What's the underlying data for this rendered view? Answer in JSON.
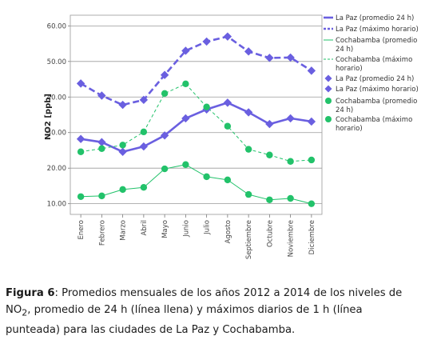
{
  "chart_data": {
    "type": "line",
    "ylabel": "NO2 [ppb]",
    "ylim": [
      7,
      63
    ],
    "yticks": [
      "10.00",
      "20.00",
      "30.00",
      "40.00",
      "50.00",
      "60.00"
    ],
    "ytick_values": [
      10,
      20,
      30,
      40,
      50,
      60
    ],
    "categories": [
      "Enero",
      "Febrero",
      "Marzo",
      "Abril",
      "Mayo",
      "Junio",
      "Julio",
      "Agosto",
      "Septiembre",
      "Octubre",
      "Noviembre",
      "Diciembre"
    ],
    "grid": "horizontal",
    "legend_position": "right",
    "series": [
      {
        "name": "La Paz (promedio 24 h)",
        "color": "#6a5fe0",
        "line": "solid",
        "width": 2.6,
        "values": [
          28.2,
          27.3,
          24.6,
          26.1,
          29.2,
          34.0,
          36.5,
          38.4,
          35.7,
          32.4,
          34.0,
          33.1
        ]
      },
      {
        "name": "La Paz (máximo horario)",
        "color": "#6a5fe0",
        "line": "dashed",
        "width": 2.6,
        "values": [
          43.8,
          40.4,
          37.8,
          39.2,
          46.2,
          53.0,
          55.6,
          57.0,
          52.8,
          51.0,
          51.1,
          47.4
        ]
      },
      {
        "name": "Cochabamba (promedio 24 h)",
        "color": "#22c26a",
        "line": "solid",
        "width": 1.0,
        "values": [
          12.0,
          12.2,
          14.0,
          14.6,
          19.8,
          21.0,
          17.6,
          16.7,
          12.6,
          11.1,
          11.5,
          10.0
        ]
      },
      {
        "name": "Cochabamba (máximo horario)",
        "color": "#22c26a",
        "line": "dashed",
        "width": 1.0,
        "values": [
          24.6,
          25.5,
          26.5,
          30.2,
          41.0,
          43.7,
          37.2,
          31.8,
          25.3,
          23.7,
          21.9,
          22.3
        ]
      }
    ],
    "legend": [
      {
        "label": "La Paz (promedio 24 h)",
        "symbol": "line",
        "color": "#6a5fe0",
        "dash": false,
        "width": 2.6
      },
      {
        "label": "La Paz (máximo horario)",
        "symbol": "line",
        "color": "#6a5fe0",
        "dash": true,
        "width": 2.6
      },
      {
        "label": "Cochabamba (promedio 24 h)",
        "symbol": "line",
        "color": "#22c26a",
        "dash": false,
        "width": 1.0
      },
      {
        "label": "Cochabamba (máximo horario)",
        "symbol": "line",
        "color": "#22c26a",
        "dash": true,
        "width": 1.0
      },
      {
        "label": "La Paz (promedio 24 h)",
        "symbol": "diamond",
        "color": "#6a5fe0"
      },
      {
        "label": "La Paz (máximo horario)",
        "symbol": "diamond",
        "color": "#6a5fe0"
      },
      {
        "label": "Cochabamba (promedio 24 h)",
        "symbol": "circle",
        "color": "#22c26a"
      },
      {
        "label": "Cochabamba (máximo horario)",
        "symbol": "circle",
        "color": "#22c26a"
      }
    ]
  },
  "caption": {
    "label": "Figura 6",
    "text_before": ": Promedios mensuales de los años 2012 a 2014 de los niveles de NO",
    "subscript": "2",
    "text_after": ", promedio de 24 h (línea llena) y máximos diarios de 1 h (línea punteada) para las ciudades de La Paz y Cochabamba."
  }
}
